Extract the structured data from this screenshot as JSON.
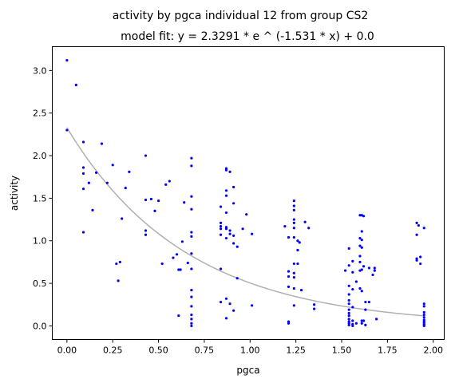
{
  "chart_data": {
    "type": "scatter",
    "title": "activity by pgca individual 12 from group CS2",
    "subtitle": "model fit: y = 2.3291 * e ^ (-1.531 * x) + 0.0",
    "xlabel": "pgca",
    "ylabel": "activity",
    "xlim": [
      -0.08,
      2.06
    ],
    "ylim": [
      -0.16,
      3.28
    ],
    "xticks": [
      0.0,
      0.25,
      0.5,
      0.75,
      1.0,
      1.25,
      1.5,
      1.75,
      2.0
    ],
    "xtick_labels": [
      "0.00",
      "0.25",
      "0.50",
      "0.75",
      "1.00",
      "1.25",
      "1.50",
      "1.75",
      "2.00"
    ],
    "yticks": [
      0.0,
      0.5,
      1.0,
      1.5,
      2.0,
      2.5,
      3.0
    ],
    "ytick_labels": [
      "0.0",
      "0.5",
      "1.0",
      "1.5",
      "2.0",
      "2.5",
      "3.0"
    ],
    "grid": false,
    "point_color": "#0000ff",
    "fit_color": "#b0b0b0",
    "fit": {
      "a": 2.3291,
      "b": -1.531,
      "c": 0.0
    },
    "points": [
      [
        0.0,
        3.12
      ],
      [
        0.0,
        2.3
      ],
      [
        0.05,
        2.83
      ],
      [
        0.09,
        2.16
      ],
      [
        0.09,
        1.86
      ],
      [
        0.09,
        1.79
      ],
      [
        0.09,
        1.61
      ],
      [
        0.09,
        1.1
      ],
      [
        0.12,
        1.68
      ],
      [
        0.14,
        1.36
      ],
      [
        0.16,
        1.8
      ],
      [
        0.19,
        2.14
      ],
      [
        0.22,
        1.68
      ],
      [
        0.25,
        1.89
      ],
      [
        0.27,
        0.73
      ],
      [
        0.28,
        0.53
      ],
      [
        0.29,
        0.75
      ],
      [
        0.3,
        1.26
      ],
      [
        0.32,
        1.62
      ],
      [
        0.34,
        1.81
      ],
      [
        0.43,
        2.0
      ],
      [
        0.43,
        1.48
      ],
      [
        0.43,
        1.12
      ],
      [
        0.43,
        1.07
      ],
      [
        0.46,
        1.49
      ],
      [
        0.48,
        1.35
      ],
      [
        0.5,
        1.47
      ],
      [
        0.52,
        0.73
      ],
      [
        0.54,
        1.66
      ],
      [
        0.56,
        1.7
      ],
      [
        0.58,
        0.8
      ],
      [
        0.6,
        0.84
      ],
      [
        0.61,
        0.66
      ],
      [
        0.61,
        0.12
      ],
      [
        0.62,
        0.66
      ],
      [
        0.63,
        0.99
      ],
      [
        0.64,
        1.45
      ],
      [
        0.66,
        0.74
      ],
      [
        0.68,
        1.97
      ],
      [
        0.68,
        1.88
      ],
      [
        0.68,
        1.52
      ],
      [
        0.68,
        1.37
      ],
      [
        0.68,
        1.1
      ],
      [
        0.68,
        1.05
      ],
      [
        0.68,
        0.85
      ],
      [
        0.68,
        0.67
      ],
      [
        0.68,
        0.42
      ],
      [
        0.68,
        0.34
      ],
      [
        0.68,
        0.23
      ],
      [
        0.68,
        0.13
      ],
      [
        0.68,
        0.08
      ],
      [
        0.68,
        0.03
      ],
      [
        0.68,
        0.0
      ],
      [
        0.84,
        1.4
      ],
      [
        0.84,
        1.21
      ],
      [
        0.84,
        1.17
      ],
      [
        0.84,
        1.14
      ],
      [
        0.84,
        1.07
      ],
      [
        0.84,
        0.67
      ],
      [
        0.84,
        0.28
      ],
      [
        0.87,
        1.85
      ],
      [
        0.87,
        1.83
      ],
      [
        0.87,
        1.59
      ],
      [
        0.87,
        1.53
      ],
      [
        0.87,
        1.33
      ],
      [
        0.87,
        1.16
      ],
      [
        0.87,
        1.14
      ],
      [
        0.87,
        1.03
      ],
      [
        0.87,
        0.32
      ],
      [
        0.87,
        0.09
      ],
      [
        0.89,
        1.81
      ],
      [
        0.89,
        1.12
      ],
      [
        0.89,
        1.08
      ],
      [
        0.89,
        0.26
      ],
      [
        0.91,
        1.63
      ],
      [
        0.91,
        1.44
      ],
      [
        0.91,
        1.06
      ],
      [
        0.91,
        0.97
      ],
      [
        0.91,
        0.18
      ],
      [
        0.93,
        0.93
      ],
      [
        0.93,
        0.56
      ],
      [
        0.96,
        1.14
      ],
      [
        0.98,
        1.31
      ],
      [
        1.01,
        1.08
      ],
      [
        1.01,
        0.24
      ],
      [
        1.19,
        1.17
      ],
      [
        1.21,
        1.04
      ],
      [
        1.21,
        0.64
      ],
      [
        1.21,
        0.58
      ],
      [
        1.21,
        0.46
      ],
      [
        1.21,
        0.05
      ],
      [
        1.21,
        0.03
      ],
      [
        1.24,
        1.47
      ],
      [
        1.24,
        1.41
      ],
      [
        1.24,
        1.36
      ],
      [
        1.24,
        1.25
      ],
      [
        1.24,
        1.21
      ],
      [
        1.24,
        1.15
      ],
      [
        1.24,
        1.04
      ],
      [
        1.24,
        0.73
      ],
      [
        1.24,
        0.62
      ],
      [
        1.24,
        0.57
      ],
      [
        1.24,
        0.44
      ],
      [
        1.24,
        0.24
      ],
      [
        1.26,
        1.0
      ],
      [
        1.26,
        0.89
      ],
      [
        1.26,
        0.73
      ],
      [
        1.27,
        0.98
      ],
      [
        1.28,
        0.42
      ],
      [
        1.3,
        1.22
      ],
      [
        1.32,
        1.15
      ],
      [
        1.35,
        0.25
      ],
      [
        1.35,
        0.2
      ],
      [
        1.52,
        0.65
      ],
      [
        1.54,
        0.91
      ],
      [
        1.54,
        0.71
      ],
      [
        1.54,
        0.47
      ],
      [
        1.54,
        0.37
      ],
      [
        1.54,
        0.3
      ],
      [
        1.54,
        0.26
      ],
      [
        1.54,
        0.19
      ],
      [
        1.54,
        0.15
      ],
      [
        1.54,
        0.12
      ],
      [
        1.54,
        0.08
      ],
      [
        1.54,
        0.05
      ],
      [
        1.54,
        0.03
      ],
      [
        1.54,
        0.01
      ],
      [
        1.56,
        0.76
      ],
      [
        1.56,
        0.63
      ],
      [
        1.56,
        0.43
      ],
      [
        1.56,
        0.22
      ],
      [
        1.56,
        0.06
      ],
      [
        1.56,
        0.02
      ],
      [
        1.56,
        0.0
      ],
      [
        1.58,
        0.52
      ],
      [
        1.58,
        0.03
      ],
      [
        1.6,
        1.3
      ],
      [
        1.6,
        1.03
      ],
      [
        1.6,
        0.94
      ],
      [
        1.6,
        0.82
      ],
      [
        1.6,
        0.75
      ],
      [
        1.6,
        0.65
      ],
      [
        1.6,
        0.44
      ],
      [
        1.61,
        1.3
      ],
      [
        1.61,
        1.11
      ],
      [
        1.61,
        1.01
      ],
      [
        1.61,
        0.92
      ],
      [
        1.61,
        0.66
      ],
      [
        1.61,
        0.41
      ],
      [
        1.61,
        0.06
      ],
      [
        1.61,
        0.03
      ],
      [
        1.62,
        1.29
      ],
      [
        1.62,
        0.7
      ],
      [
        1.62,
        0.06
      ],
      [
        1.63,
        0.28
      ],
      [
        1.63,
        0.19
      ],
      [
        1.63,
        0.01
      ],
      [
        1.65,
        0.68
      ],
      [
        1.65,
        0.28
      ],
      [
        1.67,
        0.6
      ],
      [
        1.68,
        0.68
      ],
      [
        1.68,
        0.65
      ],
      [
        1.69,
        0.08
      ],
      [
        1.91,
        1.21
      ],
      [
        1.91,
        1.07
      ],
      [
        1.91,
        0.79
      ],
      [
        1.91,
        0.77
      ],
      [
        1.92,
        1.18
      ],
      [
        1.93,
        0.81
      ],
      [
        1.93,
        0.73
      ],
      [
        1.95,
        1.15
      ],
      [
        1.95,
        0.26
      ],
      [
        1.95,
        0.23
      ],
      [
        1.95,
        0.16
      ],
      [
        1.95,
        0.13
      ],
      [
        1.95,
        0.1
      ],
      [
        1.95,
        0.07
      ],
      [
        1.95,
        0.05
      ],
      [
        1.95,
        0.04
      ],
      [
        1.95,
        0.02
      ],
      [
        1.95,
        0.01
      ],
      [
        1.95,
        0.0
      ]
    ]
  }
}
